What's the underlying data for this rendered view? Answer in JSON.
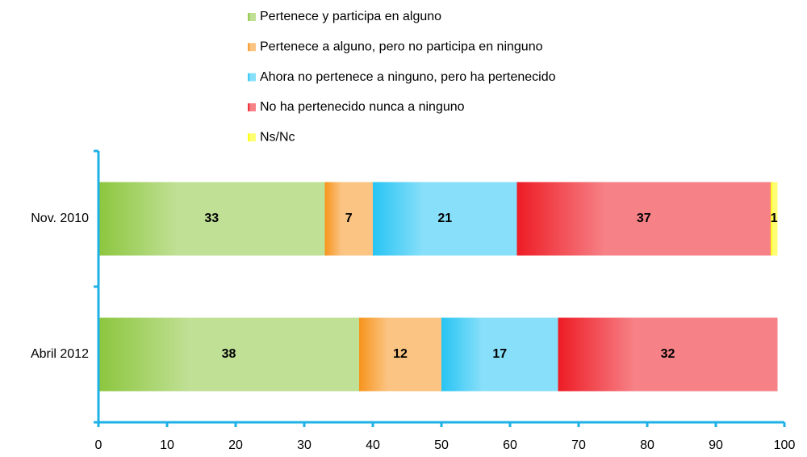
{
  "chart_data": {
    "type": "stacked_barh",
    "categories": [
      "Nov. 2010",
      "Abril 2012"
    ],
    "series": [
      {
        "name": "Pertenece y participa en alguno",
        "color": "#8cc63e",
        "values": [
          33,
          38
        ]
      },
      {
        "name": "Pertenece a alguno, pero no participa en ninguno",
        "color": "#f7941d",
        "values": [
          7,
          12
        ]
      },
      {
        "name": "Ahora no pertenece a ninguno, pero ha pertenecido",
        "color": "#27c4f4",
        "values": [
          21,
          17
        ]
      },
      {
        "name": "No ha pertenecido nunca a ninguno",
        "color": "#ee1c25",
        "values": [
          37,
          32
        ]
      },
      {
        "name": "Ns/Nc",
        "color": "#ffff00",
        "values": [
          1,
          null
        ]
      }
    ],
    "xlim": [
      0,
      100
    ],
    "xticks": [
      0,
      10,
      20,
      30,
      40,
      50,
      60,
      70,
      80,
      90,
      100
    ],
    "axis_color": "#1eb1e6",
    "legend": "top"
  }
}
